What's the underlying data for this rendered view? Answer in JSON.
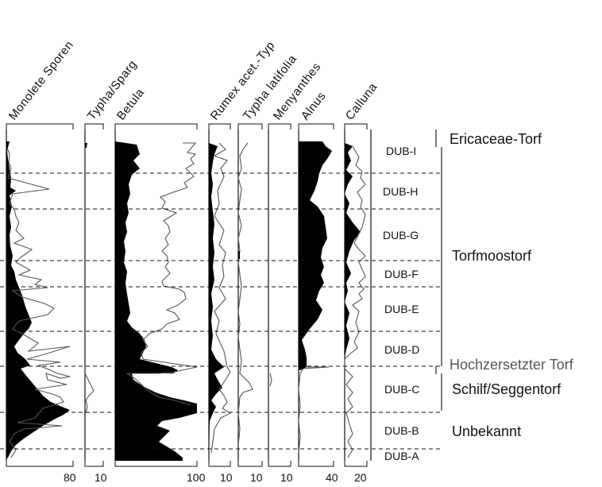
{
  "chart_data": {
    "type": "area",
    "title": "",
    "xlabel": "",
    "ylabel": "",
    "panels": [
      {
        "name": "Monolete Sporen",
        "label_caps": "Monolete Sporen",
        "xlim": [
          0,
          80
        ],
        "tick_label": "80",
        "exaggeration": true,
        "pts": [
          [
            0,
            2
          ],
          [
            2,
            2
          ],
          [
            1,
            1
          ],
          [
            2,
            1
          ],
          [
            4,
            1
          ],
          [
            5,
            1
          ],
          [
            6,
            1
          ],
          [
            5,
            2
          ],
          [
            4,
            2
          ],
          [
            8,
            2
          ],
          [
            10,
            2
          ],
          [
            5,
            2
          ],
          [
            6,
            2
          ],
          [
            5,
            2
          ],
          [
            6,
            2
          ],
          [
            7,
            2
          ],
          [
            8,
            2
          ],
          [
            5,
            2
          ],
          [
            6,
            2
          ],
          [
            7,
            2
          ],
          [
            8,
            3
          ],
          [
            10,
            3
          ],
          [
            14,
            3
          ],
          [
            16,
            3
          ],
          [
            18,
            4
          ],
          [
            20,
            4
          ],
          [
            14,
            4
          ],
          [
            18,
            4
          ],
          [
            15,
            4
          ],
          [
            20,
            4
          ],
          [
            24,
            5
          ],
          [
            20,
            4
          ],
          [
            24,
            6
          ],
          [
            28,
            7
          ],
          [
            32,
            8
          ],
          [
            36,
            9
          ],
          [
            32,
            8
          ],
          [
            28,
            6
          ],
          [
            24,
            6
          ],
          [
            34,
            8
          ],
          [
            40,
            10
          ],
          [
            44,
            11
          ],
          [
            48,
            11
          ],
          [
            52,
            12
          ],
          [
            56,
            13
          ],
          [
            58,
            14
          ],
          [
            60,
            14
          ],
          [
            64,
            15
          ],
          [
            72,
            16
          ],
          [
            76,
            18
          ],
          [
            80,
            18
          ],
          [
            78,
            18
          ],
          [
            70,
            17
          ],
          [
            64,
            15
          ],
          [
            60,
            13
          ],
          [
            54,
            12
          ],
          [
            50,
            11
          ],
          [
            46,
            10
          ],
          [
            42,
            9
          ],
          [
            36,
            8
          ],
          [
            30,
            7
          ],
          [
            24,
            6
          ],
          [
            20,
            5
          ],
          [
            16,
            4
          ]
        ],
        "ex": [
          [
            0,
            6
          ],
          [
            2,
            5
          ],
          [
            3,
            8
          ],
          [
            6,
            10
          ],
          [
            8,
            12
          ],
          [
            60,
            14
          ],
          [
            12,
            16
          ],
          [
            10,
            20
          ],
          [
            14,
            24
          ],
          [
            8,
            26
          ],
          [
            12,
            30
          ],
          [
            18,
            34
          ],
          [
            10,
            36
          ],
          [
            8,
            40
          ],
          [
            22,
            44
          ],
          [
            34,
            48
          ],
          [
            20,
            50
          ],
          [
            40,
            54
          ],
          [
            30,
            58
          ],
          [
            46,
            62
          ],
          [
            74,
            60
          ],
          [
            16,
            66
          ],
          [
            24,
            70
          ],
          [
            30,
            74
          ],
          [
            40,
            78
          ],
          [
            50,
            82
          ],
          [
            56,
            84
          ],
          [
            70,
            86
          ],
          [
            72,
            88
          ],
          [
            80,
            90
          ],
          [
            66,
            92
          ],
          [
            78,
            94
          ],
          [
            64,
            96
          ],
          [
            60,
            98
          ],
          [
            56,
            100
          ],
          [
            54,
            102
          ],
          [
            50,
            104
          ],
          [
            42,
            106
          ],
          [
            30,
            110
          ],
          [
            18,
            114
          ],
          [
            8,
            118
          ]
        ]
      },
      {
        "name": "Typha/Sparg",
        "xlim": [
          0,
          10
        ],
        "tick_label": "10"
      },
      {
        "name": "Betula",
        "xlim": [
          0,
          100
        ],
        "tick_label": "100"
      },
      {
        "name": "Rumex acet.-Typ",
        "xlim": [
          0,
          10
        ],
        "tick_label": "10"
      },
      {
        "name": "Typha latifolia",
        "xlim": [
          0,
          10
        ],
        "tick_label": "10"
      },
      {
        "name": "Menyanthes",
        "xlim": [
          0,
          10
        ],
        "tick_label": "10"
      },
      {
        "name": "Alnus",
        "xlim": [
          0,
          40
        ],
        "tick_label": "40"
      },
      {
        "name": "Calluna",
        "xlim": [
          0,
          20
        ],
        "tick_label": "20"
      }
    ],
    "tick_labels": [
      "80",
      "10",
      "100",
      "10",
      "10",
      "10",
      "40",
      "20"
    ],
    "zones": [
      "DUB-I",
      "DUB-H",
      "DUB-G",
      "DUB-F",
      "DUB-E",
      "DUB-D",
      "DUB-C",
      "DUB-B",
      "DUB-A"
    ],
    "facies": [
      "Ericaceae-Torf",
      "Torfmoostorf",
      "Hochzersetzter Torf",
      "Schilf/Seggentorf",
      "Unbekannt"
    ],
    "colors": {
      "fill": "#000000",
      "exaggeration_line": "#555555",
      "facies_gray": "#555555",
      "facies_black": "#111111"
    }
  }
}
